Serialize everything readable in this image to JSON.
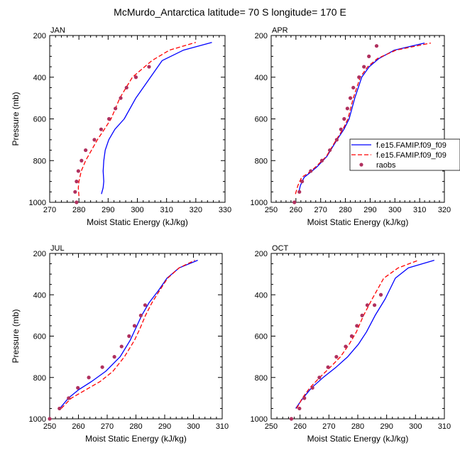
{
  "figure_title": "McMurdo_Antarctica  latitude= 70 S longitude= 170 E",
  "colors": {
    "model1": "#0000ff",
    "model2": "#ff0000",
    "raobs": "#b0305e",
    "axis": "#000000"
  },
  "legend": {
    "entries": [
      {
        "label": "f.e15.FAMIP.f09_f09",
        "style": "solid",
        "color": "#0000ff"
      },
      {
        "label": "f.e15.FAMIP.f09_f09",
        "style": "dashed",
        "color": "#ff0000"
      },
      {
        "label": "raobs",
        "style": "marker",
        "color": "#b0305e"
      }
    ]
  },
  "chart_data": [
    {
      "type": "line",
      "panel": "JAN",
      "xlabel": "Moist Static Energy (kJ/kg)",
      "ylabel": "Pressure (mb)",
      "xlim": [
        270,
        330
      ],
      "ylim": [
        200,
        1000
      ],
      "y_reversed": true,
      "xticks": [
        270,
        280,
        290,
        300,
        310,
        320,
        330
      ],
      "yticks": [
        200,
        400,
        600,
        800,
        1000
      ],
      "series": [
        {
          "style": "solid",
          "color": "#0000ff",
          "x": [
            287.7,
            288.3,
            288.5,
            288.3,
            288.5,
            289.0,
            290.2,
            292.3,
            295.5,
            299.5,
            304.5,
            308.5,
            315.8,
            325.5
          ],
          "y": [
            960,
            930,
            900,
            850,
            800,
            750,
            700,
            650,
            600,
            500,
            400,
            320,
            270,
            233
          ]
        },
        {
          "style": "dashed",
          "color": "#ff0000",
          "x": [
            280.0,
            279.8,
            280.0,
            280.8,
            282.3,
            284.3,
            286.3,
            288.7,
            291.0,
            294.0,
            298.3,
            305.0,
            311.0,
            320.0
          ],
          "y": [
            970,
            930,
            900,
            850,
            800,
            750,
            700,
            650,
            600,
            500,
            400,
            320,
            270,
            233
          ]
        },
        {
          "style": "marker",
          "color": "#b0305e",
          "x": [
            279.2,
            278.7,
            279.2,
            279.8,
            280.9,
            282.3,
            285.3,
            287.6,
            290.3,
            292.5,
            294.3,
            296.3,
            299.5,
            304.0
          ],
          "y": [
            1000,
            950,
            900,
            850,
            800,
            750,
            700,
            650,
            600,
            550,
            500,
            450,
            400,
            350
          ]
        }
      ]
    },
    {
      "type": "line",
      "panel": "APR",
      "xlabel": "Moist Static Energy (kJ/kg)",
      "ylabel": "",
      "xlim": [
        250,
        320
      ],
      "ylim": [
        200,
        1000
      ],
      "y_reversed": true,
      "xticks": [
        250,
        260,
        270,
        280,
        290,
        300,
        310,
        320
      ],
      "yticks": [
        200,
        400,
        600,
        800,
        1000
      ],
      "series": [
        {
          "style": "solid",
          "color": "#0000ff",
          "x": [
            261.2,
            261.8,
            263.3,
            265.5,
            268.5,
            272.5,
            276.6,
            279.4,
            281.5,
            283.8,
            286.6,
            289.6,
            293.6,
            299.8,
            312.0
          ],
          "y": [
            950,
            920,
            880,
            860,
            830,
            780,
            700,
            650,
            600,
            500,
            400,
            350,
            310,
            270,
            236
          ]
        },
        {
          "style": "dashed",
          "color": "#ff0000",
          "x": [
            259.8,
            260.8,
            262.3,
            265.0,
            268.0,
            272.3,
            276.3,
            279.0,
            281.0,
            283.2,
            286.0,
            289.0,
            293.0,
            300.5,
            314.5
          ],
          "y": [
            960,
            920,
            880,
            860,
            830,
            780,
            700,
            650,
            600,
            500,
            400,
            350,
            310,
            270,
            236
          ]
        },
        {
          "style": "marker",
          "color": "#b0305e",
          "x": [
            259.4,
            261.4,
            262.5,
            266.0,
            270.5,
            273.7,
            276.5,
            278.2,
            279.5,
            280.8,
            282.0,
            283.2,
            285.5,
            287.5,
            289.5,
            292.6
          ],
          "y": [
            1000,
            950,
            900,
            850,
            800,
            750,
            700,
            650,
            600,
            550,
            500,
            450,
            400,
            350,
            300,
            250
          ]
        }
      ]
    },
    {
      "type": "line",
      "panel": "JUL",
      "xlabel": "Moist Static Energy (kJ/kg)",
      "ylabel": "Pressure (mb)",
      "xlim": [
        250,
        310
      ],
      "ylim": [
        200,
        1000
      ],
      "y_reversed": true,
      "xticks": [
        250,
        260,
        270,
        280,
        290,
        300,
        310
      ],
      "yticks": [
        200,
        400,
        600,
        800,
        1000
      ],
      "series": [
        {
          "style": "solid",
          "color": "#0000ff",
          "x": [
            253.5,
            256.5,
            260.0,
            264.5,
            269.5,
            274.5,
            278.0,
            280.0,
            282.0,
            284.5,
            287.8,
            290.8,
            295.0,
            301.5
          ],
          "y": [
            950,
            900,
            860,
            820,
            770,
            700,
            620,
            560,
            500,
            440,
            380,
            320,
            270,
            233
          ]
        },
        {
          "style": "dashed",
          "color": "#ff0000",
          "x": [
            254.0,
            257.5,
            262.5,
            267.5,
            272.0,
            276.0,
            279.5,
            281.5,
            283.3,
            285.5,
            288.2,
            291.0,
            295.0,
            300.5
          ],
          "y": [
            950,
            900,
            860,
            820,
            770,
            700,
            620,
            560,
            500,
            440,
            380,
            320,
            270,
            233
          ]
        },
        {
          "style": "marker",
          "color": "#b0305e",
          "x": [
            250.0,
            253.4,
            256.6,
            259.8,
            263.6,
            268.3,
            272.5,
            275.0,
            277.6,
            279.5,
            281.7,
            283.2
          ],
          "y": [
            1000,
            950,
            900,
            850,
            800,
            750,
            700,
            650,
            600,
            550,
            500,
            450
          ]
        }
      ]
    },
    {
      "type": "line",
      "panel": "OCT",
      "xlabel": "Moist Static Energy (kJ/kg)",
      "ylabel": "",
      "xlim": [
        250,
        310
      ],
      "ylim": [
        200,
        1000
      ],
      "y_reversed": true,
      "xticks": [
        250,
        260,
        270,
        280,
        290,
        300,
        310
      ],
      "yticks": [
        200,
        400,
        600,
        800,
        1000
      ],
      "series": [
        {
          "style": "solid",
          "color": "#0000ff",
          "x": [
            258.5,
            261.0,
            264.0,
            268.0,
            272.5,
            276.5,
            280.2,
            283.0,
            286.0,
            289.5,
            293.0,
            297.5,
            306.5
          ],
          "y": [
            950,
            900,
            850,
            800,
            750,
            700,
            640,
            580,
            500,
            420,
            320,
            270,
            233
          ]
        },
        {
          "style": "dashed",
          "color": "#ff0000",
          "x": [
            258.8,
            260.8,
            263.4,
            266.8,
            270.5,
            274.0,
            277.0,
            279.5,
            282.0,
            285.0,
            289.0,
            294.0,
            301.0
          ],
          "y": [
            950,
            900,
            850,
            800,
            750,
            700,
            640,
            580,
            500,
            420,
            320,
            270,
            233
          ]
        },
        {
          "style": "marker",
          "color": "#b0305e",
          "x": [
            257.0,
            259.8,
            261.5,
            264.3,
            266.7,
            269.7,
            272.6,
            275.8,
            277.9,
            279.7,
            281.5,
            283.3,
            285.8,
            288.0
          ],
          "y": [
            1000,
            950,
            900,
            850,
            800,
            750,
            700,
            650,
            600,
            550,
            500,
            450,
            450,
            400
          ]
        }
      ]
    }
  ]
}
